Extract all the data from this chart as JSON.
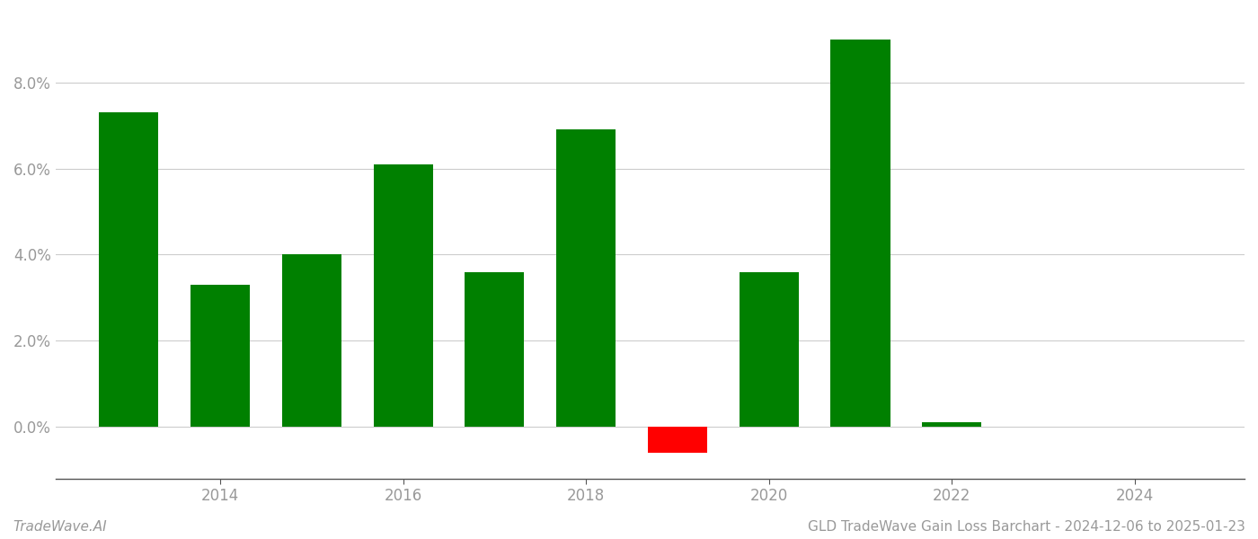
{
  "years": [
    2013,
    2014,
    2015,
    2016,
    2017,
    2018,
    2019,
    2020,
    2021,
    2022,
    2023
  ],
  "values": [
    0.073,
    0.033,
    0.04,
    0.061,
    0.036,
    0.069,
    -0.006,
    0.036,
    0.09,
    0.001,
    0.0
  ],
  "colors": [
    "#008000",
    "#008000",
    "#008000",
    "#008000",
    "#008000",
    "#008000",
    "#ff0000",
    "#008000",
    "#008000",
    "#008000",
    "#008000"
  ],
  "xtick_positions": [
    2014,
    2016,
    2018,
    2020,
    2022,
    2024
  ],
  "xtick_labels": [
    "2014",
    "2016",
    "2018",
    "2020",
    "2022",
    "2024"
  ],
  "footer_left": "TradeWave.AI",
  "footer_right": "GLD TradeWave Gain Loss Barchart - 2024-12-06 to 2025-01-23",
  "ylim_min": -0.012,
  "ylim_max": 0.096,
  "bar_width": 0.65,
  "grid_color": "#cccccc",
  "background_color": "#ffffff",
  "axis_label_color": "#999999",
  "footer_fontsize": 11,
  "tick_fontsize": 12,
  "xlim_min": 2012.2,
  "xlim_max": 2025.2
}
